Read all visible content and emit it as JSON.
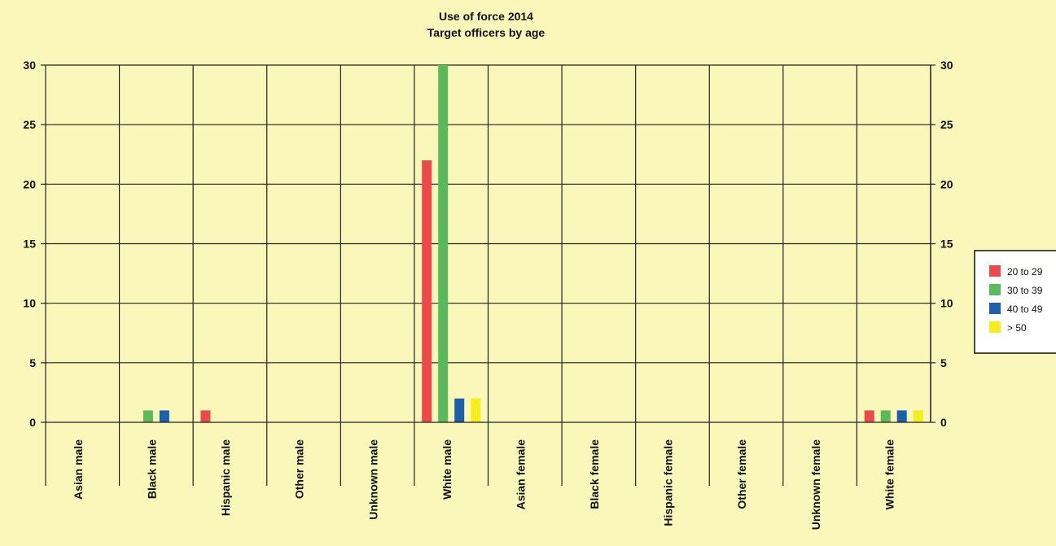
{
  "chart_data": {
    "type": "bar",
    "title": "Use of force 2014",
    "subtitle": "Target officers by age",
    "xlabel": "",
    "ylabel": "",
    "ylim": [
      0,
      30
    ],
    "yticks": [
      0,
      5,
      10,
      15,
      20,
      25,
      30
    ],
    "grid": true,
    "legend_position": "right",
    "categories": [
      "Asian male",
      "Black male",
      "Hispanic male",
      "Other male",
      "Unknown male",
      "White male",
      "Asian female",
      "Black female",
      "Hispanic female",
      "Other female",
      "Unknown female",
      "White female"
    ],
    "series": [
      {
        "name": "20 to 29",
        "color": "#e94b4b",
        "values": [
          0,
          0,
          1,
          0,
          0,
          22,
          0,
          0,
          0,
          0,
          0,
          1
        ]
      },
      {
        "name": "30 to 39",
        "color": "#5cb85c",
        "values": [
          0,
          1,
          0,
          0,
          0,
          30,
          0,
          0,
          0,
          0,
          0,
          1
        ]
      },
      {
        "name": "40 to 49",
        "color": "#1f5fa8",
        "values": [
          0,
          1,
          0,
          0,
          0,
          2,
          0,
          0,
          0,
          0,
          0,
          1
        ]
      },
      {
        "name": "> 50",
        "color": "#f5ee1e",
        "values": [
          0,
          0,
          0,
          0,
          0,
          2,
          0,
          0,
          0,
          0,
          0,
          1
        ]
      }
    ]
  }
}
